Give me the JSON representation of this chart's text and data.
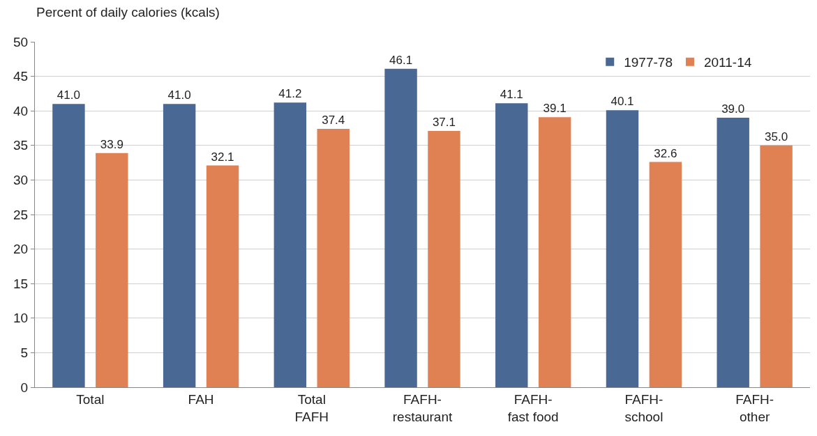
{
  "chart_data": {
    "type": "bar",
    "ylabel": "Percent of daily calories (kcals)",
    "categories": [
      "Total",
      "FAH",
      "Total\nFAFH",
      "FAFH-\nrestaurant",
      "FAFH-\nfast food",
      "FAFH-\nschool",
      "FAFH-\nother"
    ],
    "series": [
      {
        "name": "1977-78",
        "color": "#4a6894",
        "values": [
          41.0,
          41.0,
          41.2,
          46.1,
          41.1,
          40.1,
          39.0
        ],
        "value_labels": [
          "41.0",
          "41.0",
          "41.2",
          "46.1",
          "41.1",
          "40.1",
          "39.0"
        ]
      },
      {
        "name": "2011-14",
        "color": "#e08154",
        "values": [
          33.9,
          32.1,
          37.4,
          37.1,
          39.1,
          32.6,
          35.0
        ],
        "value_labels": [
          "33.9",
          "32.1",
          "37.4",
          "37.1",
          "39.1",
          "32.6",
          "35.0"
        ]
      }
    ],
    "ylim": [
      0,
      50
    ],
    "yticks": [
      0,
      5,
      10,
      15,
      20,
      25,
      30,
      35,
      40,
      45,
      50
    ],
    "grid": "y",
    "legend": "top right"
  }
}
